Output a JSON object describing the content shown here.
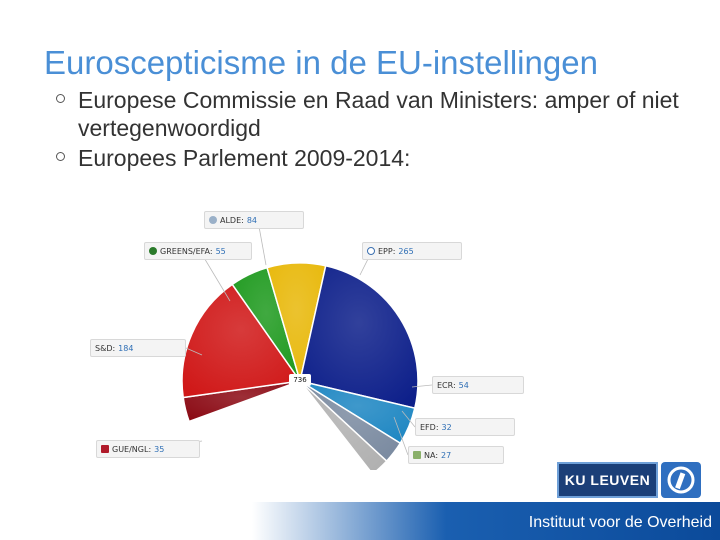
{
  "slide": {
    "title": "Euroscepticisme in de EU-instellingen",
    "bullets": [
      "Europese Commissie en Raad van Ministers: amper of niet vertegenwoordigd",
      "Europees Parlement 2009-2014:"
    ],
    "footer": "Instituut voor de Overheid",
    "logo_text": "KU LEUVEN"
  },
  "chart_data": {
    "type": "pie",
    "title": "",
    "total_label": "736",
    "series": [
      {
        "name": "GUE/NGL",
        "value": 35,
        "color": "#8b0a14"
      },
      {
        "name": "S&D",
        "value": 184,
        "color": "#d01818"
      },
      {
        "name": "GREENS/EFA",
        "value": 55,
        "color": "#1f9a1f"
      },
      {
        "name": "ALDE",
        "value": 84,
        "color": "#e8b80a"
      },
      {
        "name": "EPP",
        "value": 265,
        "color": "#0d1f8a"
      },
      {
        "name": "ECR",
        "value": 54,
        "color": "#1d86c2"
      },
      {
        "name": "EFD",
        "value": 32,
        "color": "#7a8aa0"
      },
      {
        "name": "NA",
        "value": 27,
        "color": "#b0b0b0"
      }
    ],
    "legend_labels": {
      "alde": "ALDE:",
      "alde_val": "84",
      "greens": "GREENS/EFA:",
      "greens_val": "55",
      "epp": "EPP:",
      "epp_val": "265",
      "sd": "S&D:",
      "sd_val": "184",
      "ecr": "ECR:",
      "ecr_val": "54",
      "efd": "EFD:",
      "efd_val": "32",
      "na": "NA:",
      "na_val": "27",
      "gue": "GUE/NGL:",
      "gue_val": "35"
    }
  }
}
